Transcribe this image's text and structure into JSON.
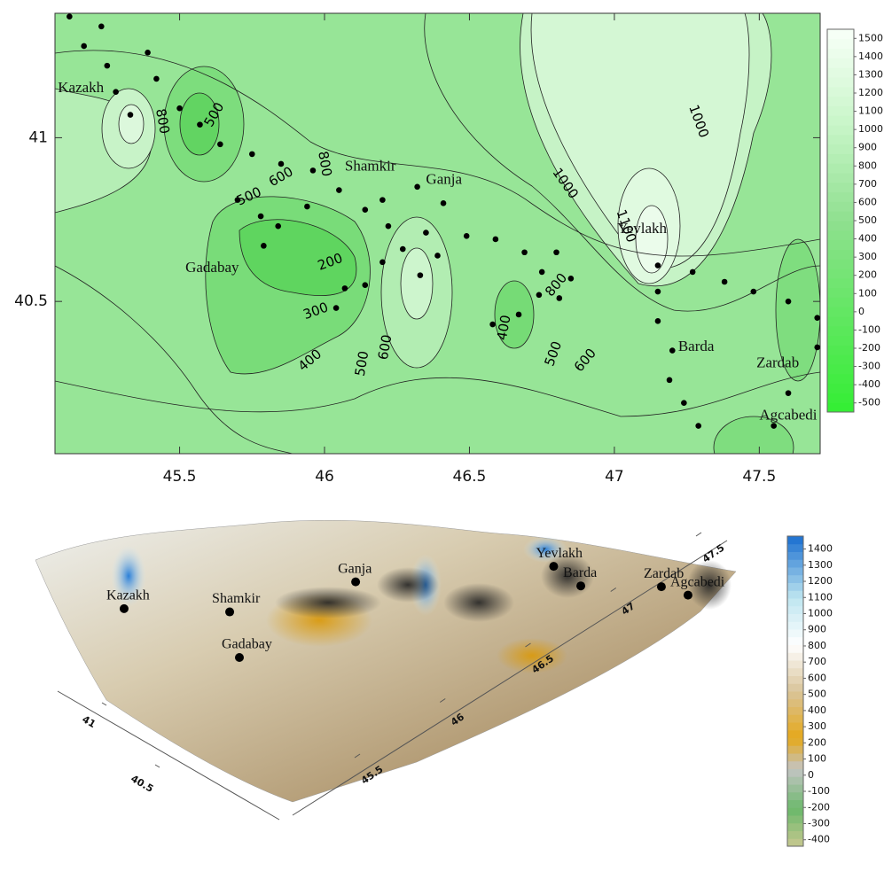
{
  "chart_data": [
    {
      "type": "contour",
      "color": "#97e597",
      "xlim": [
        45.07,
        47.71
      ],
      "ylim": [
        40.035,
        41.38
      ],
      "xticks": [
        45.5,
        46,
        46.5,
        47,
        47.5
      ],
      "yticks": [
        41,
        40.5
      ],
      "stations": {
        "x": [
          45.12,
          45.17,
          45.23,
          45.25,
          45.28,
          45.33,
          45.39,
          45.42,
          45.5,
          45.57,
          45.64,
          45.75,
          45.85,
          45.96,
          46.05,
          45.7,
          45.78,
          45.94,
          46.14,
          46.2,
          46.32,
          46.41,
          46.22,
          46.35,
          45.84,
          45.79,
          46.07,
          46.04,
          46.14,
          46.2,
          46.27,
          46.39,
          46.33,
          46.49,
          46.59,
          46.69,
          46.8,
          46.85,
          46.75,
          46.74,
          46.81,
          46.67,
          46.58,
          47.15,
          47.15,
          47.27,
          47.38,
          47.48,
          47.6,
          47.7,
          47.7,
          47.15,
          47.2,
          47.19,
          47.24,
          47.29,
          47.55,
          47.6
        ],
        "y": [
          41.37,
          41.28,
          41.34,
          41.22,
          41.14,
          41.07,
          41.26,
          41.18,
          41.09,
          41.04,
          40.98,
          40.95,
          40.92,
          40.9,
          40.84,
          40.81,
          40.76,
          40.79,
          40.78,
          40.81,
          40.85,
          40.8,
          40.73,
          40.71,
          40.73,
          40.67,
          40.54,
          40.48,
          40.55,
          40.62,
          40.66,
          40.64,
          40.58,
          40.7,
          40.69,
          40.65,
          40.65,
          40.57,
          40.59,
          40.52,
          40.51,
          40.46,
          40.43,
          40.61,
          40.53,
          40.59,
          40.56,
          40.53,
          40.5,
          40.45,
          40.36,
          40.44,
          40.35,
          40.26,
          40.19,
          40.12,
          40.12,
          40.22
        ]
      },
      "cities": {
        "names": [
          "Kazakh",
          "Shamkir",
          "Ganja",
          "Yevlakh",
          "Gadabay",
          "Barda",
          "Zardab",
          "Agcabedi"
        ],
        "x": [
          45.08,
          46.07,
          46.35,
          47.01,
          45.52,
          47.22,
          47.49,
          47.5
        ],
        "y": [
          41.15,
          40.91,
          40.87,
          40.72,
          40.6,
          40.36,
          40.31,
          40.15
        ]
      },
      "contour_labels": {
        "values": [
          800,
          500,
          800,
          600,
          500,
          200,
          300,
          400,
          500,
          600,
          400,
          500,
          600,
          800,
          1000,
          1100,
          1000
        ],
        "x": [
          45.44,
          45.62,
          46.0,
          45.85,
          45.74,
          46.02,
          45.97,
          45.95,
          46.13,
          46.21,
          46.62,
          46.79,
          46.9,
          46.8,
          46.83,
          47.04,
          47.29
        ],
        "y": [
          41.05,
          41.07,
          40.92,
          40.88,
          40.82,
          40.62,
          40.47,
          40.32,
          40.31,
          40.36,
          40.42,
          40.34,
          40.32,
          40.55,
          40.86,
          40.73,
          41.05
        ]
      },
      "colorbar": {
        "lim": [
          -550,
          1550
        ],
        "ticks": [
          1500,
          1400,
          1300,
          1200,
          1100,
          1000,
          900,
          800,
          700,
          600,
          500,
          400,
          300,
          200,
          100,
          0,
          -100,
          -200,
          -300,
          -400,
          -500
        ]
      }
    },
    {
      "type": "surface",
      "xticks": [
        45.5,
        46,
        46.5,
        47,
        47.5
      ],
      "yticks": [
        41,
        40.5
      ],
      "cities": {
        "names": [
          "Kazakh",
          "Gadabay",
          "Shamkir",
          "Ganja",
          "Yevlakh",
          "Barda",
          "Zardab",
          "Agcabedi"
        ],
        "x": [
          45.32,
          45.74,
          45.75,
          46.3,
          47.13,
          47.22,
          47.55,
          47.65
        ],
        "y": [
          41.13,
          40.62,
          40.92,
          40.88,
          40.62,
          40.45,
          40.3,
          40.2
        ]
      },
      "colorbar": {
        "lim": [
          -440,
          1480
        ],
        "ticks": [
          1400,
          1300,
          1200,
          1100,
          1000,
          900,
          800,
          700,
          600,
          500,
          400,
          300,
          200,
          100,
          0,
          -100,
          -200,
          -300,
          -400
        ]
      }
    }
  ]
}
